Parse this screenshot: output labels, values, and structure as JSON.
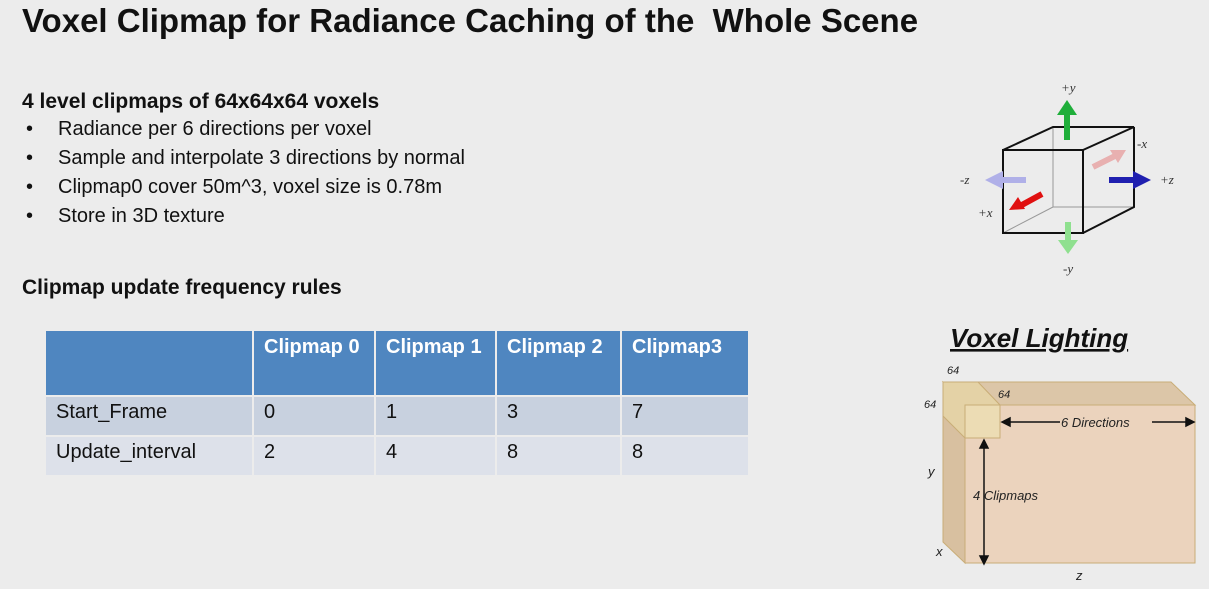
{
  "title": "Voxel Clipmap for Radiance Caching of the  Whole Scene",
  "section1": {
    "heading": "4 level clipmaps of 64x64x64 voxels",
    "bullets": [
      "Radiance per 6 directions per voxel",
      "Sample and interpolate 3 directions by normal",
      "Clipmap0 cover 50m^3, voxel size is 0.78m",
      "Store in 3D texture"
    ]
  },
  "section2": {
    "heading": "Clipmap update frequency rules"
  },
  "table": {
    "headers": [
      "",
      "Clipmap 0",
      "Clipmap 1",
      "Clipmap 2",
      "Clipmap3"
    ],
    "rows": [
      [
        "Start_Frame",
        "0",
        "1",
        "3",
        "7"
      ],
      [
        "Update_interval",
        "2",
        "4",
        "8",
        "8"
      ]
    ]
  },
  "cube_diagram": {
    "labels": {
      "py": "+y",
      "ny": "-y",
      "px": "+x",
      "nx": "-x",
      "pz": "+z",
      "nz": "-z"
    },
    "colors": {
      "y": "#1fae3a",
      "x": "#e01010",
      "z": "#2020b0"
    }
  },
  "voxel_lighting": {
    "title": "Voxel Lighting",
    "labels": {
      "top64": "64",
      "inner64": "64",
      "left64": "64",
      "directions": "6 Directions",
      "clipmaps": "4 Clipmaps",
      "y": "y",
      "x": "x",
      "z": "z"
    }
  }
}
